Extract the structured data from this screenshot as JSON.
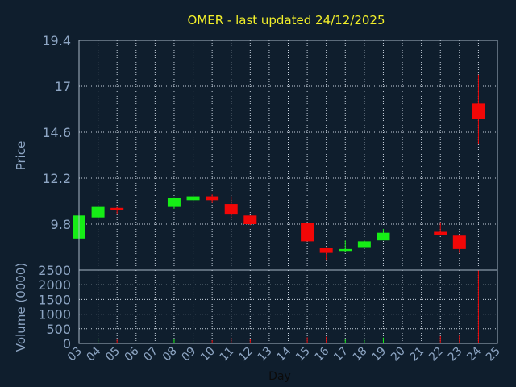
{
  "title": "OMER - last updated 24/12/2025",
  "colors": {
    "background": "#0f1e2d",
    "title": "#f2ef2a",
    "text": "#8ea6c4",
    "frame": "#a9b8c8",
    "grid": "#c8d3de",
    "up": "#16ee16",
    "down": "#f20707"
  },
  "chart_data": [
    {
      "type": "candlestick",
      "ylabel": "Price",
      "ylim": [
        7.4,
        19.4
      ],
      "y_ticks": [
        "19.4",
        "17",
        "14.6",
        "12.2",
        "9.8"
      ],
      "grid": true,
      "candles": [
        {
          "day": "03",
          "open": 9.05,
          "close": 10.25,
          "high": 10.3,
          "low": 9.05
        },
        {
          "day": "04",
          "open": 10.15,
          "close": 10.7,
          "high": 10.75,
          "low": 10.05
        },
        {
          "day": "05",
          "open": 10.65,
          "close": 10.55,
          "high": 10.7,
          "low": 10.35
        },
        {
          "day": "08",
          "open": 10.7,
          "close": 11.15,
          "high": 11.2,
          "low": 10.6
        },
        {
          "day": "09",
          "open": 11.05,
          "close": 11.25,
          "high": 11.4,
          "low": 10.95
        },
        {
          "day": "10",
          "open": 11.25,
          "close": 11.05,
          "high": 11.35,
          "low": 10.9
        },
        {
          "day": "11",
          "open": 10.85,
          "close": 10.3,
          "high": 11.25,
          "low": 10.1
        },
        {
          "day": "12",
          "open": 10.25,
          "close": 9.8,
          "high": 10.25,
          "low": 9.75
        },
        {
          "day": "15",
          "open": 9.85,
          "close": 8.9,
          "high": 9.85,
          "low": 8.9
        },
        {
          "day": "16",
          "open": 8.55,
          "close": 8.3,
          "high": 8.6,
          "low": 7.9
        },
        {
          "day": "17",
          "open": 8.4,
          "close": 8.5,
          "high": 8.95,
          "low": 8.35
        },
        {
          "day": "18",
          "open": 8.6,
          "close": 8.9,
          "high": 8.95,
          "low": 8.6
        },
        {
          "day": "19",
          "open": 8.95,
          "close": 9.35,
          "high": 9.55,
          "low": 8.95
        },
        {
          "day": "22",
          "open": 9.4,
          "close": 9.25,
          "high": 9.9,
          "low": 9.2
        },
        {
          "day": "23",
          "open": 9.2,
          "close": 8.5,
          "high": 9.25,
          "low": 8.3
        },
        {
          "day": "24",
          "open": 16.1,
          "close": 15.3,
          "high": 17.6,
          "low": 14.0
        }
      ]
    },
    {
      "type": "bar",
      "ylabel": "Volume (0000)",
      "xlabel": "Day",
      "ylim": [
        0,
        2500
      ],
      "y_ticks": [
        "2500",
        "2000",
        "1500",
        "1000",
        "500",
        "0"
      ],
      "x_ticks": [
        "03",
        "04",
        "05",
        "06",
        "07",
        "08",
        "09",
        "10",
        "11",
        "12",
        "13",
        "14",
        "15",
        "16",
        "17",
        "18",
        "19",
        "20",
        "21",
        "22",
        "23",
        "24",
        "25"
      ],
      "grid": true,
      "volumes": [
        {
          "day": "03",
          "value": 110,
          "color": "up"
        },
        {
          "day": "04",
          "value": 170,
          "color": "up"
        },
        {
          "day": "05",
          "value": 130,
          "color": "down"
        },
        {
          "day": "08",
          "value": 150,
          "color": "up"
        },
        {
          "day": "09",
          "value": 90,
          "color": "up"
        },
        {
          "day": "10",
          "value": 110,
          "color": "down"
        },
        {
          "day": "11",
          "value": 190,
          "color": "down"
        },
        {
          "day": "12",
          "value": 150,
          "color": "down"
        },
        {
          "day": "15",
          "value": 210,
          "color": "down"
        },
        {
          "day": "16",
          "value": 230,
          "color": "down"
        },
        {
          "day": "17",
          "value": 150,
          "color": "up"
        },
        {
          "day": "18",
          "value": 120,
          "color": "up"
        },
        {
          "day": "19",
          "value": 200,
          "color": "up"
        },
        {
          "day": "22",
          "value": 250,
          "color": "down"
        },
        {
          "day": "23",
          "value": 270,
          "color": "down"
        },
        {
          "day": "24",
          "value": 2500,
          "color": "down"
        }
      ]
    }
  ]
}
